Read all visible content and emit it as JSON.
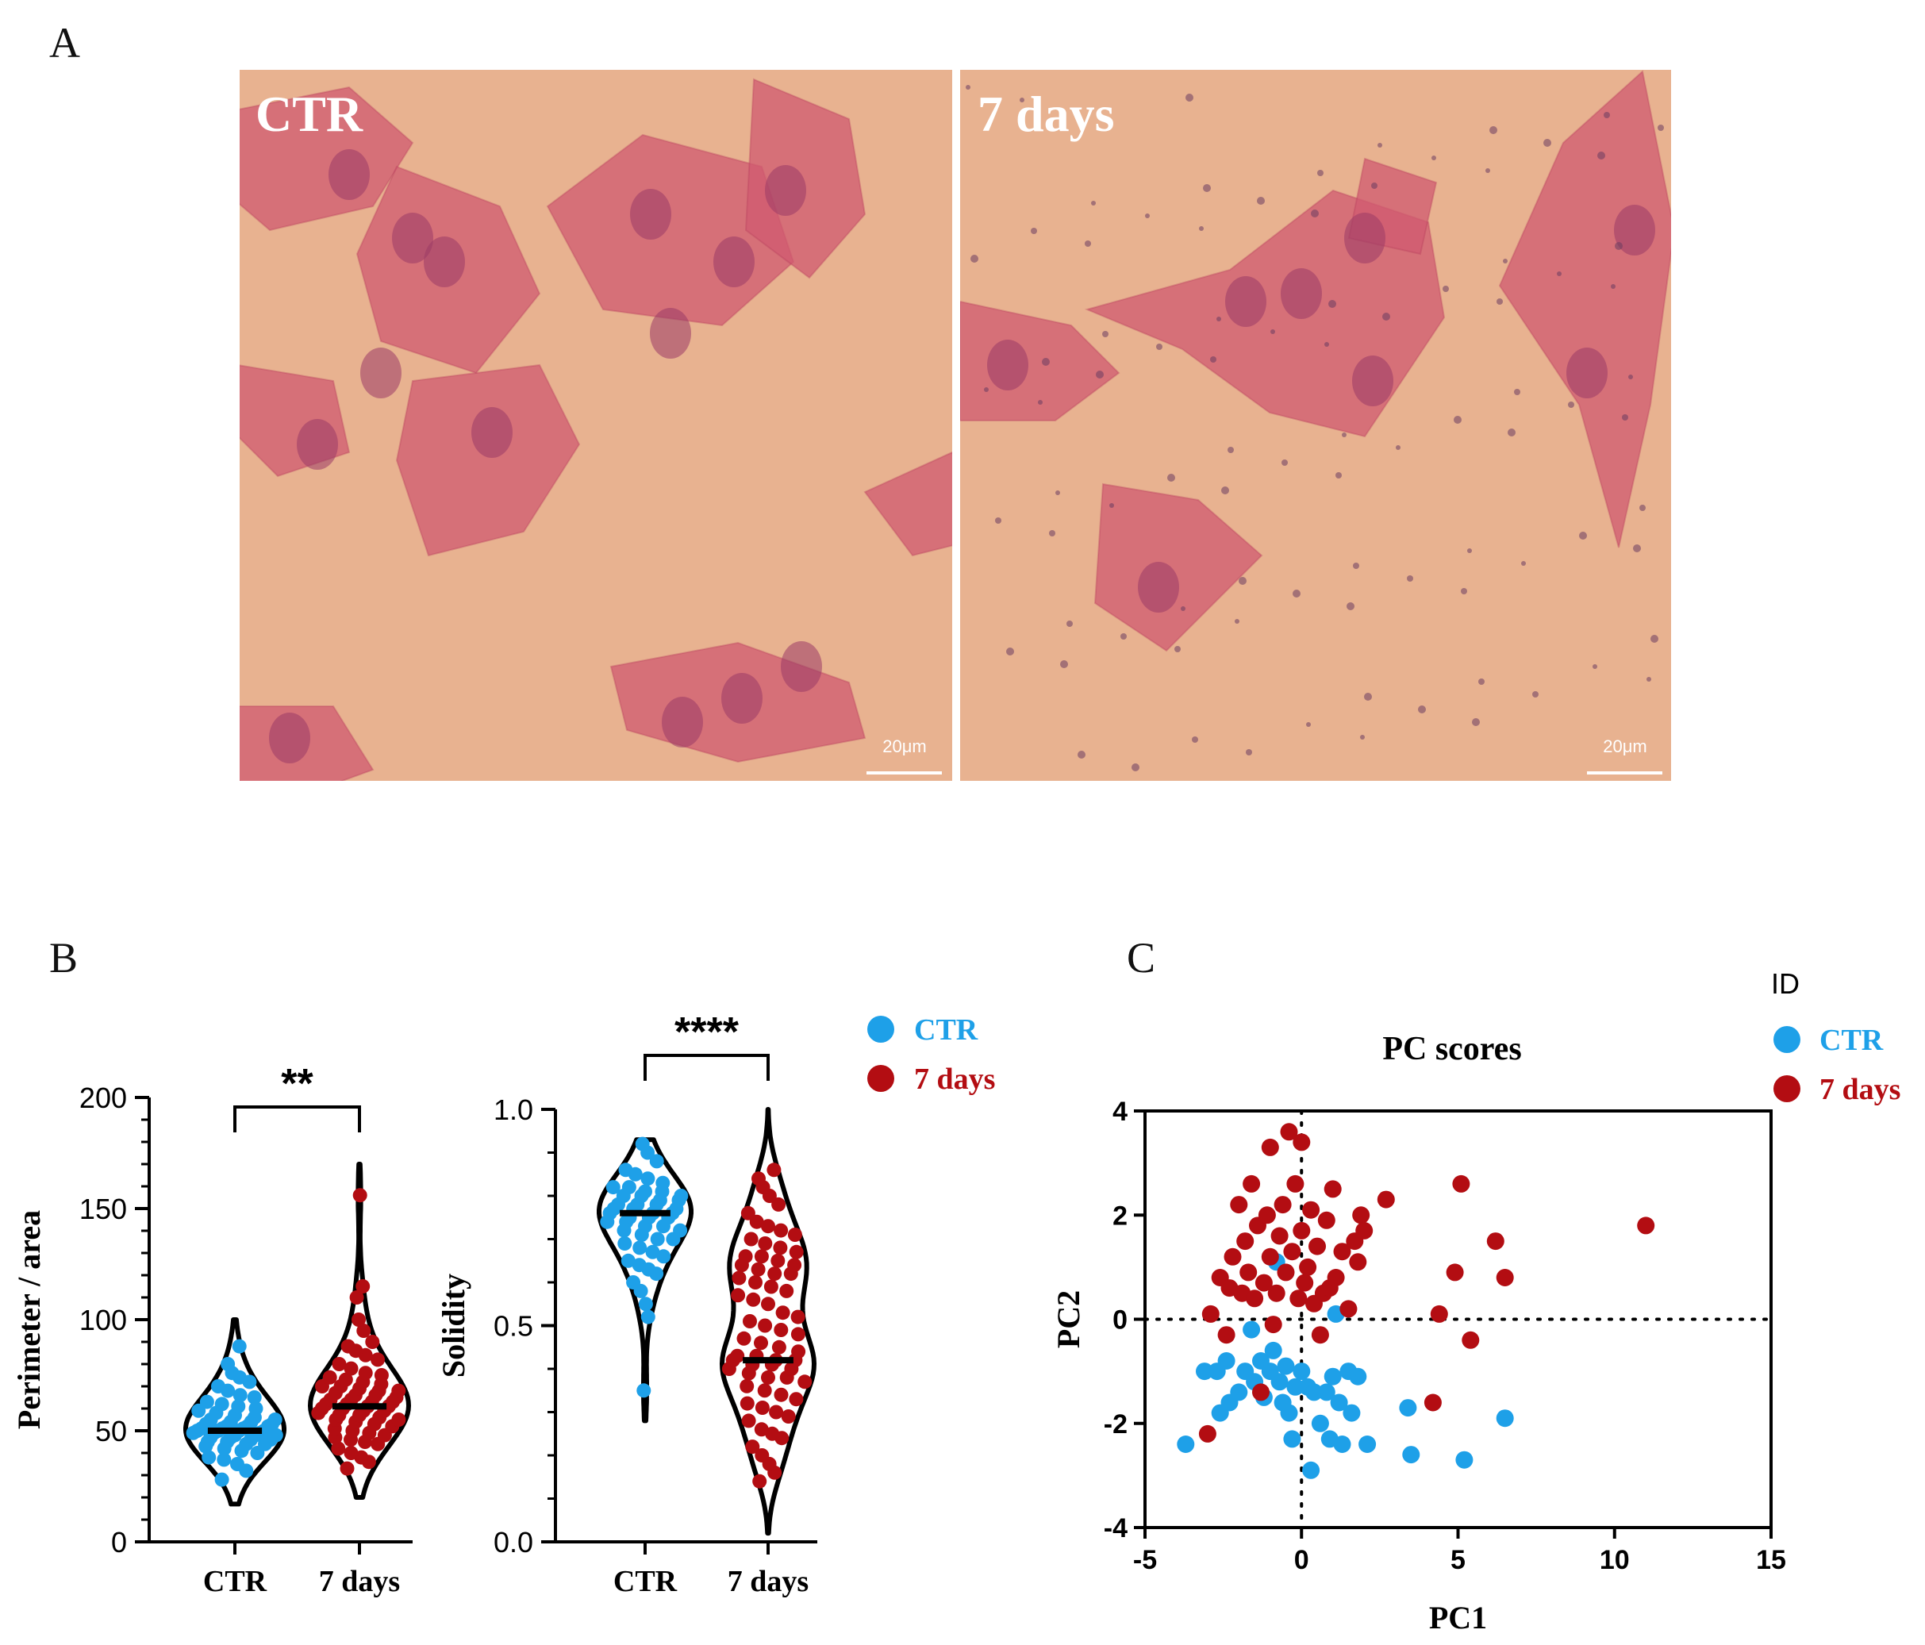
{
  "panels": {
    "A": {
      "letter": "A",
      "left_label": "CTR",
      "right_label": "7 days",
      "scalebar_left": "20μm",
      "scalebar_right": "20μm"
    },
    "B": {
      "letter": "B"
    },
    "C": {
      "letter": "C"
    }
  },
  "colors": {
    "ctr": "#1ea0e8",
    "days7": "#b30d12",
    "image_bg": "#e8b290",
    "cell": "#d05a70",
    "nucleus": "#9a3a66"
  },
  "chart_data": [
    {
      "type": "violin",
      "title": "",
      "xlabel": "",
      "ylabel": "Perimeter / area",
      "ylim": [
        0,
        200
      ],
      "yticks": [
        0,
        50,
        100,
        150,
        200
      ],
      "categories": [
        "CTR",
        "7 days"
      ],
      "significance": "**",
      "series": [
        {
          "name": "CTR",
          "median": 50,
          "min": 17,
          "max": 100,
          "values": [
            28,
            32,
            35,
            37,
            38,
            40,
            41,
            42,
            43,
            44,
            44,
            45,
            45,
            46,
            46,
            47,
            47,
            48,
            48,
            48,
            49,
            49,
            49,
            50,
            50,
            50,
            50,
            51,
            51,
            51,
            52,
            52,
            52,
            53,
            53,
            54,
            54,
            55,
            55,
            56,
            57,
            58,
            59,
            60,
            61,
            62,
            63,
            65,
            66,
            68,
            70,
            72,
            74,
            76,
            80,
            88
          ]
        },
        {
          "name": "7 days",
          "median": 61,
          "min": 20,
          "max": 170,
          "values": [
            33,
            36,
            38,
            40,
            42,
            44,
            45,
            46,
            47,
            48,
            49,
            50,
            51,
            52,
            53,
            54,
            55,
            55,
            56,
            57,
            57,
            58,
            59,
            59,
            60,
            60,
            61,
            61,
            62,
            62,
            63,
            63,
            64,
            64,
            65,
            66,
            66,
            67,
            68,
            68,
            69,
            70,
            70,
            71,
            72,
            73,
            74,
            75,
            76,
            78,
            80,
            82,
            84,
            86,
            88,
            90,
            95,
            100,
            110,
            115,
            156
          ]
        }
      ]
    },
    {
      "type": "violin",
      "title": "",
      "xlabel": "",
      "ylabel": "Solidity",
      "ylim": [
        0,
        1.0
      ],
      "yticks": [
        0.0,
        0.5,
        1.0
      ],
      "categories": [
        "CTR",
        "7 days"
      ],
      "significance": "****",
      "legend": [
        "CTR",
        "7 days"
      ],
      "series": [
        {
          "name": "CTR",
          "median": 0.76,
          "min": 0.28,
          "max": 0.93,
          "values": [
            0.35,
            0.52,
            0.55,
            0.58,
            0.6,
            0.62,
            0.63,
            0.64,
            0.65,
            0.66,
            0.67,
            0.68,
            0.69,
            0.7,
            0.7,
            0.71,
            0.72,
            0.72,
            0.73,
            0.73,
            0.74,
            0.74,
            0.75,
            0.75,
            0.75,
            0.76,
            0.76,
            0.76,
            0.77,
            0.77,
            0.77,
            0.78,
            0.78,
            0.78,
            0.79,
            0.79,
            0.8,
            0.8,
            0.8,
            0.81,
            0.81,
            0.82,
            0.82,
            0.83,
            0.84,
            0.85,
            0.86,
            0.88,
            0.9,
            0.92
          ]
        },
        {
          "name": "7 days",
          "median": 0.42,
          "min": 0.02,
          "max": 1.0,
          "values": [
            0.14,
            0.16,
            0.18,
            0.2,
            0.22,
            0.24,
            0.25,
            0.26,
            0.28,
            0.29,
            0.3,
            0.31,
            0.32,
            0.33,
            0.34,
            0.35,
            0.36,
            0.37,
            0.38,
            0.38,
            0.39,
            0.4,
            0.4,
            0.41,
            0.41,
            0.42,
            0.42,
            0.42,
            0.43,
            0.43,
            0.44,
            0.45,
            0.46,
            0.47,
            0.48,
            0.49,
            0.5,
            0.51,
            0.52,
            0.53,
            0.55,
            0.56,
            0.57,
            0.58,
            0.59,
            0.6,
            0.61,
            0.62,
            0.62,
            0.63,
            0.64,
            0.64,
            0.65,
            0.66,
            0.66,
            0.67,
            0.68,
            0.69,
            0.7,
            0.71,
            0.72,
            0.73,
            0.74,
            0.76,
            0.78,
            0.8,
            0.82,
            0.84,
            0.86
          ]
        }
      ]
    },
    {
      "type": "scatter",
      "title": "PC scores",
      "xlabel": "PC1",
      "ylabel": "PC2",
      "xlim": [
        -5,
        15
      ],
      "ylim": [
        -4,
        4
      ],
      "xticks": [
        -5,
        0,
        5,
        10,
        15
      ],
      "yticks": [
        -4,
        -2,
        0,
        2,
        4
      ],
      "legend_title": "ID",
      "grid": false,
      "series": [
        {
          "name": "CTR",
          "points": [
            [
              -3.7,
              -2.4
            ],
            [
              -3.1,
              -1.0
            ],
            [
              -2.7,
              -1.0
            ],
            [
              -2.6,
              -1.8
            ],
            [
              -2.4,
              -0.8
            ],
            [
              -2.3,
              -1.6
            ],
            [
              -2.0,
              -1.4
            ],
            [
              -1.8,
              -1.0
            ],
            [
              -1.6,
              -0.2
            ],
            [
              -1.5,
              -1.2
            ],
            [
              -1.3,
              -0.8
            ],
            [
              -1.2,
              -1.5
            ],
            [
              -1.0,
              -1.0
            ],
            [
              -0.9,
              -0.6
            ],
            [
              -0.8,
              1.1
            ],
            [
              -0.7,
              -1.2
            ],
            [
              -0.6,
              -1.6
            ],
            [
              -0.5,
              -0.9
            ],
            [
              -0.4,
              -1.8
            ],
            [
              -0.3,
              -2.3
            ],
            [
              -0.2,
              -1.3
            ],
            [
              0.0,
              -1.0
            ],
            [
              0.2,
              -1.3
            ],
            [
              0.3,
              -2.9
            ],
            [
              0.4,
              -1.4
            ],
            [
              0.6,
              -2.0
            ],
            [
              0.8,
              -1.4
            ],
            [
              0.9,
              -2.3
            ],
            [
              1.0,
              -1.1
            ],
            [
              1.2,
              -1.6
            ],
            [
              1.3,
              -2.4
            ],
            [
              1.5,
              -1.0
            ],
            [
              1.6,
              -1.8
            ],
            [
              1.8,
              -1.1
            ],
            [
              2.1,
              -2.4
            ],
            [
              3.4,
              -1.7
            ],
            [
              3.5,
              -2.6
            ],
            [
              5.2,
              -2.7
            ],
            [
              6.5,
              -1.9
            ],
            [
              1.1,
              0.1
            ]
          ]
        },
        {
          "name": "7 days",
          "points": [
            [
              -3.0,
              -2.2
            ],
            [
              -2.9,
              0.1
            ],
            [
              -2.6,
              0.8
            ],
            [
              -2.4,
              -0.3
            ],
            [
              -2.3,
              0.6
            ],
            [
              -2.2,
              1.2
            ],
            [
              -2.0,
              2.2
            ],
            [
              -1.9,
              0.5
            ],
            [
              -1.8,
              1.5
            ],
            [
              -1.7,
              0.9
            ],
            [
              -1.6,
              2.6
            ],
            [
              -1.5,
              0.4
            ],
            [
              -1.4,
              1.8
            ],
            [
              -1.3,
              -1.4
            ],
            [
              -1.2,
              0.7
            ],
            [
              -1.1,
              2.0
            ],
            [
              -1.0,
              1.2
            ],
            [
              -1.0,
              3.3
            ],
            [
              -0.9,
              -0.1
            ],
            [
              -0.8,
              0.5
            ],
            [
              -0.7,
              1.6
            ],
            [
              -0.6,
              2.2
            ],
            [
              -0.5,
              0.9
            ],
            [
              -0.4,
              3.6
            ],
            [
              -0.3,
              1.3
            ],
            [
              -0.2,
              2.6
            ],
            [
              -0.1,
              0.4
            ],
            [
              0.0,
              1.7
            ],
            [
              0.0,
              3.4
            ],
            [
              0.1,
              0.7
            ],
            [
              0.2,
              1.0
            ],
            [
              0.3,
              2.1
            ],
            [
              0.4,
              0.3
            ],
            [
              0.5,
              1.4
            ],
            [
              0.6,
              -0.3
            ],
            [
              0.7,
              0.5
            ],
            [
              0.8,
              1.9
            ],
            [
              0.9,
              0.6
            ],
            [
              1.0,
              2.5
            ],
            [
              1.1,
              0.8
            ],
            [
              1.3,
              1.3
            ],
            [
              1.5,
              0.2
            ],
            [
              1.7,
              1.5
            ],
            [
              1.8,
              1.1
            ],
            [
              1.9,
              2.0
            ],
            [
              2.0,
              1.7
            ],
            [
              2.7,
              2.3
            ],
            [
              4.2,
              -1.6
            ],
            [
              4.4,
              0.1
            ],
            [
              4.9,
              0.9
            ],
            [
              5.1,
              2.6
            ],
            [
              5.4,
              -0.4
            ],
            [
              6.2,
              1.5
            ],
            [
              6.5,
              0.8
            ],
            [
              11.0,
              1.8
            ]
          ]
        }
      ]
    }
  ]
}
